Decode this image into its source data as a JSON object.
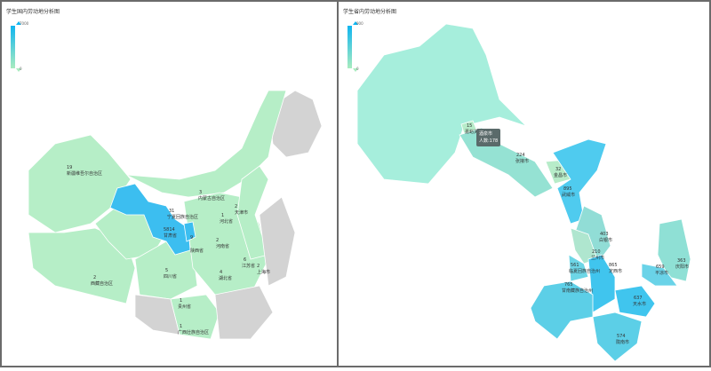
{
  "left_map": {
    "title": "学生国内劳动地分析图",
    "legend": {
      "max": "7000",
      "min": "0",
      "color_high": "#0fb5f0",
      "color_low": "#a9ecbf"
    },
    "no_data_color": "#d3d3d3",
    "regions": [
      {
        "name": "新疆维吾尔自治区",
        "value": "19"
      },
      {
        "name": "西藏自治区",
        "value": "2"
      },
      {
        "name": "宁夏回族自治区",
        "value": "31"
      },
      {
        "name": "甘肃省",
        "value": "5814"
      },
      {
        "name": "内蒙古自治区",
        "value": "3"
      },
      {
        "name": "天津市",
        "value": "2"
      },
      {
        "name": "河北省",
        "value": "1"
      },
      {
        "name": "陕西省",
        "value": "9"
      },
      {
        "name": "河南省",
        "value": "2"
      },
      {
        "name": "江苏省",
        "value": "6"
      },
      {
        "name": "上海市",
        "value": "2"
      },
      {
        "name": "湖北省",
        "value": "4"
      },
      {
        "name": "四川省",
        "value": "5"
      },
      {
        "name": "贵州省",
        "value": "1"
      },
      {
        "name": "广西壮族自治区",
        "value": "1"
      }
    ]
  },
  "right_map": {
    "title": "学生省内劳动地分析图",
    "legend": {
      "max": "900",
      "min": "0",
      "color_high": "#0fb5f0",
      "color_low": "#a9ecbf"
    },
    "regions": [
      {
        "name": "嘉峪关市",
        "value": "15"
      },
      {
        "name": "张掖市",
        "value": "224"
      },
      {
        "name": "金昌市",
        "value": "32"
      },
      {
        "name": "武威市",
        "value": "895"
      },
      {
        "name": "白银市",
        "value": "403"
      },
      {
        "name": "兰州市",
        "value": "210"
      },
      {
        "name": "临夏回族自治州",
        "value": "561"
      },
      {
        "name": "定西市",
        "value": "865"
      },
      {
        "name": "平凉市",
        "value": "659"
      },
      {
        "name": "庆阳市",
        "value": "363"
      },
      {
        "name": "甘南藏族自治州",
        "value": "765"
      },
      {
        "name": "天水市",
        "value": "637"
      },
      {
        "name": "陇南市",
        "value": "574"
      }
    ],
    "tooltip": {
      "line1": "酒泉市",
      "line2": "人数:178"
    }
  }
}
